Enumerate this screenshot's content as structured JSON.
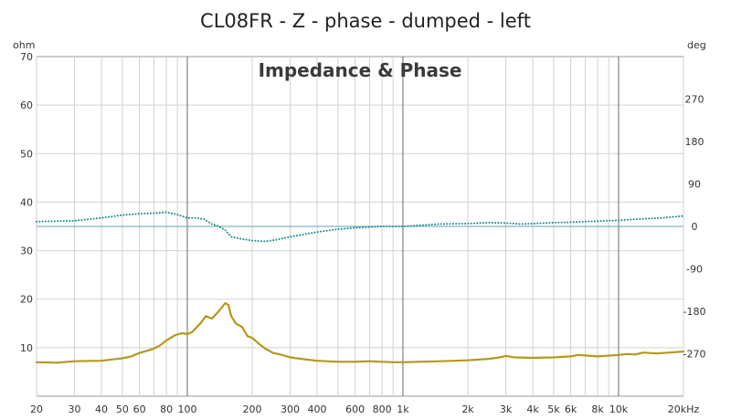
{
  "chart_data": {
    "type": "line",
    "title": "CL08FR - Z - phase - dumped - left",
    "subtitle": "Impedance & Phase",
    "x_scale": "log",
    "xlim": [
      20,
      20000
    ],
    "x_ticks": [
      {
        "value": 20,
        "label": "20"
      },
      {
        "value": 30,
        "label": "30"
      },
      {
        "value": 40,
        "label": "40"
      },
      {
        "value": 50,
        "label": "50"
      },
      {
        "value": 60,
        "label": "60"
      },
      {
        "value": 80,
        "label": "80"
      },
      {
        "value": 100,
        "label": "100"
      },
      {
        "value": 200,
        "label": "200"
      },
      {
        "value": 300,
        "label": "300"
      },
      {
        "value": 400,
        "label": "400"
      },
      {
        "value": 600,
        "label": "600"
      },
      {
        "value": 800,
        "label": "800"
      },
      {
        "value": 1000,
        "label": "1k"
      },
      {
        "value": 2000,
        "label": "2k"
      },
      {
        "value": 3000,
        "label": "3k"
      },
      {
        "value": 4000,
        "label": "4k"
      },
      {
        "value": 5000,
        "label": "5k"
      },
      {
        "value": 6000,
        "label": "6k"
      },
      {
        "value": 8000,
        "label": "8k"
      },
      {
        "value": 10000,
        "label": "10k"
      },
      {
        "value": 20000,
        "label": "20kHz"
      }
    ],
    "y_left": {
      "label": "ohm",
      "lim": [
        0,
        70
      ],
      "ticks": [
        10,
        20,
        30,
        40,
        50,
        60,
        70
      ]
    },
    "y_right": {
      "label": "deg",
      "lim": [
        -360,
        360
      ],
      "ticks": [
        -270,
        -180,
        -90,
        0,
        90,
        180,
        270
      ]
    },
    "grid": true,
    "series": [
      {
        "axis": "left",
        "style": "solid",
        "color": "#b5981e",
        "points": [
          [
            20,
            7.0
          ],
          [
            25,
            6.9
          ],
          [
            30,
            7.2
          ],
          [
            40,
            7.3
          ],
          [
            50,
            7.8
          ],
          [
            55,
            8.2
          ],
          [
            60,
            8.9
          ],
          [
            70,
            9.8
          ],
          [
            75,
            10.5
          ],
          [
            80,
            11.5
          ],
          [
            88,
            12.6
          ],
          [
            95,
            13.0
          ],
          [
            100,
            12.8
          ],
          [
            105,
            13.2
          ],
          [
            115,
            15.0
          ],
          [
            122,
            16.5
          ],
          [
            130,
            16.0
          ],
          [
            140,
            17.5
          ],
          [
            150,
            19.2
          ],
          [
            155,
            18.8
          ],
          [
            160,
            16.5
          ],
          [
            168,
            15.0
          ],
          [
            180,
            14.2
          ],
          [
            190,
            12.4
          ],
          [
            200,
            12.0
          ],
          [
            215,
            10.8
          ],
          [
            230,
            9.8
          ],
          [
            250,
            8.9
          ],
          [
            270,
            8.6
          ],
          [
            300,
            8.0
          ],
          [
            350,
            7.6
          ],
          [
            400,
            7.3
          ],
          [
            500,
            7.1
          ],
          [
            600,
            7.1
          ],
          [
            700,
            7.2
          ],
          [
            800,
            7.1
          ],
          [
            900,
            7.0
          ],
          [
            1000,
            7.0
          ],
          [
            1500,
            7.2
          ],
          [
            2000,
            7.4
          ],
          [
            2500,
            7.7
          ],
          [
            2800,
            8.0
          ],
          [
            3000,
            8.3
          ],
          [
            3300,
            8.0
          ],
          [
            4000,
            7.9
          ],
          [
            5000,
            8.0
          ],
          [
            6000,
            8.2
          ],
          [
            6500,
            8.5
          ],
          [
            7000,
            8.4
          ],
          [
            8000,
            8.2
          ],
          [
            10000,
            8.5
          ],
          [
            11000,
            8.7
          ],
          [
            12000,
            8.6
          ],
          [
            13000,
            9.0
          ],
          [
            15000,
            8.8
          ],
          [
            20000,
            9.2
          ]
        ]
      },
      {
        "axis": "right",
        "style": "dotted",
        "color": "#1f8e8e",
        "points": [
          [
            20,
            10
          ],
          [
            30,
            12
          ],
          [
            40,
            18
          ],
          [
            50,
            24
          ],
          [
            60,
            27
          ],
          [
            70,
            28
          ],
          [
            80,
            30
          ],
          [
            90,
            25
          ],
          [
            100,
            18
          ],
          [
            110,
            18
          ],
          [
            120,
            15
          ],
          [
            130,
            5
          ],
          [
            140,
            0
          ],
          [
            150,
            -8
          ],
          [
            160,
            -22
          ],
          [
            180,
            -27
          ],
          [
            200,
            -30
          ],
          [
            230,
            -32
          ],
          [
            260,
            -28
          ],
          [
            300,
            -22
          ],
          [
            400,
            -12
          ],
          [
            500,
            -6
          ],
          [
            600,
            -3
          ],
          [
            800,
            0
          ],
          [
            1000,
            0
          ],
          [
            1500,
            5
          ],
          [
            2000,
            6
          ],
          [
            2500,
            8
          ],
          [
            3000,
            7
          ],
          [
            3500,
            5
          ],
          [
            4000,
            6
          ],
          [
            5000,
            8
          ],
          [
            6000,
            9
          ],
          [
            8000,
            11
          ],
          [
            10000,
            13
          ],
          [
            13000,
            16
          ],
          [
            16000,
            18
          ],
          [
            20000,
            22
          ]
        ]
      }
    ]
  }
}
